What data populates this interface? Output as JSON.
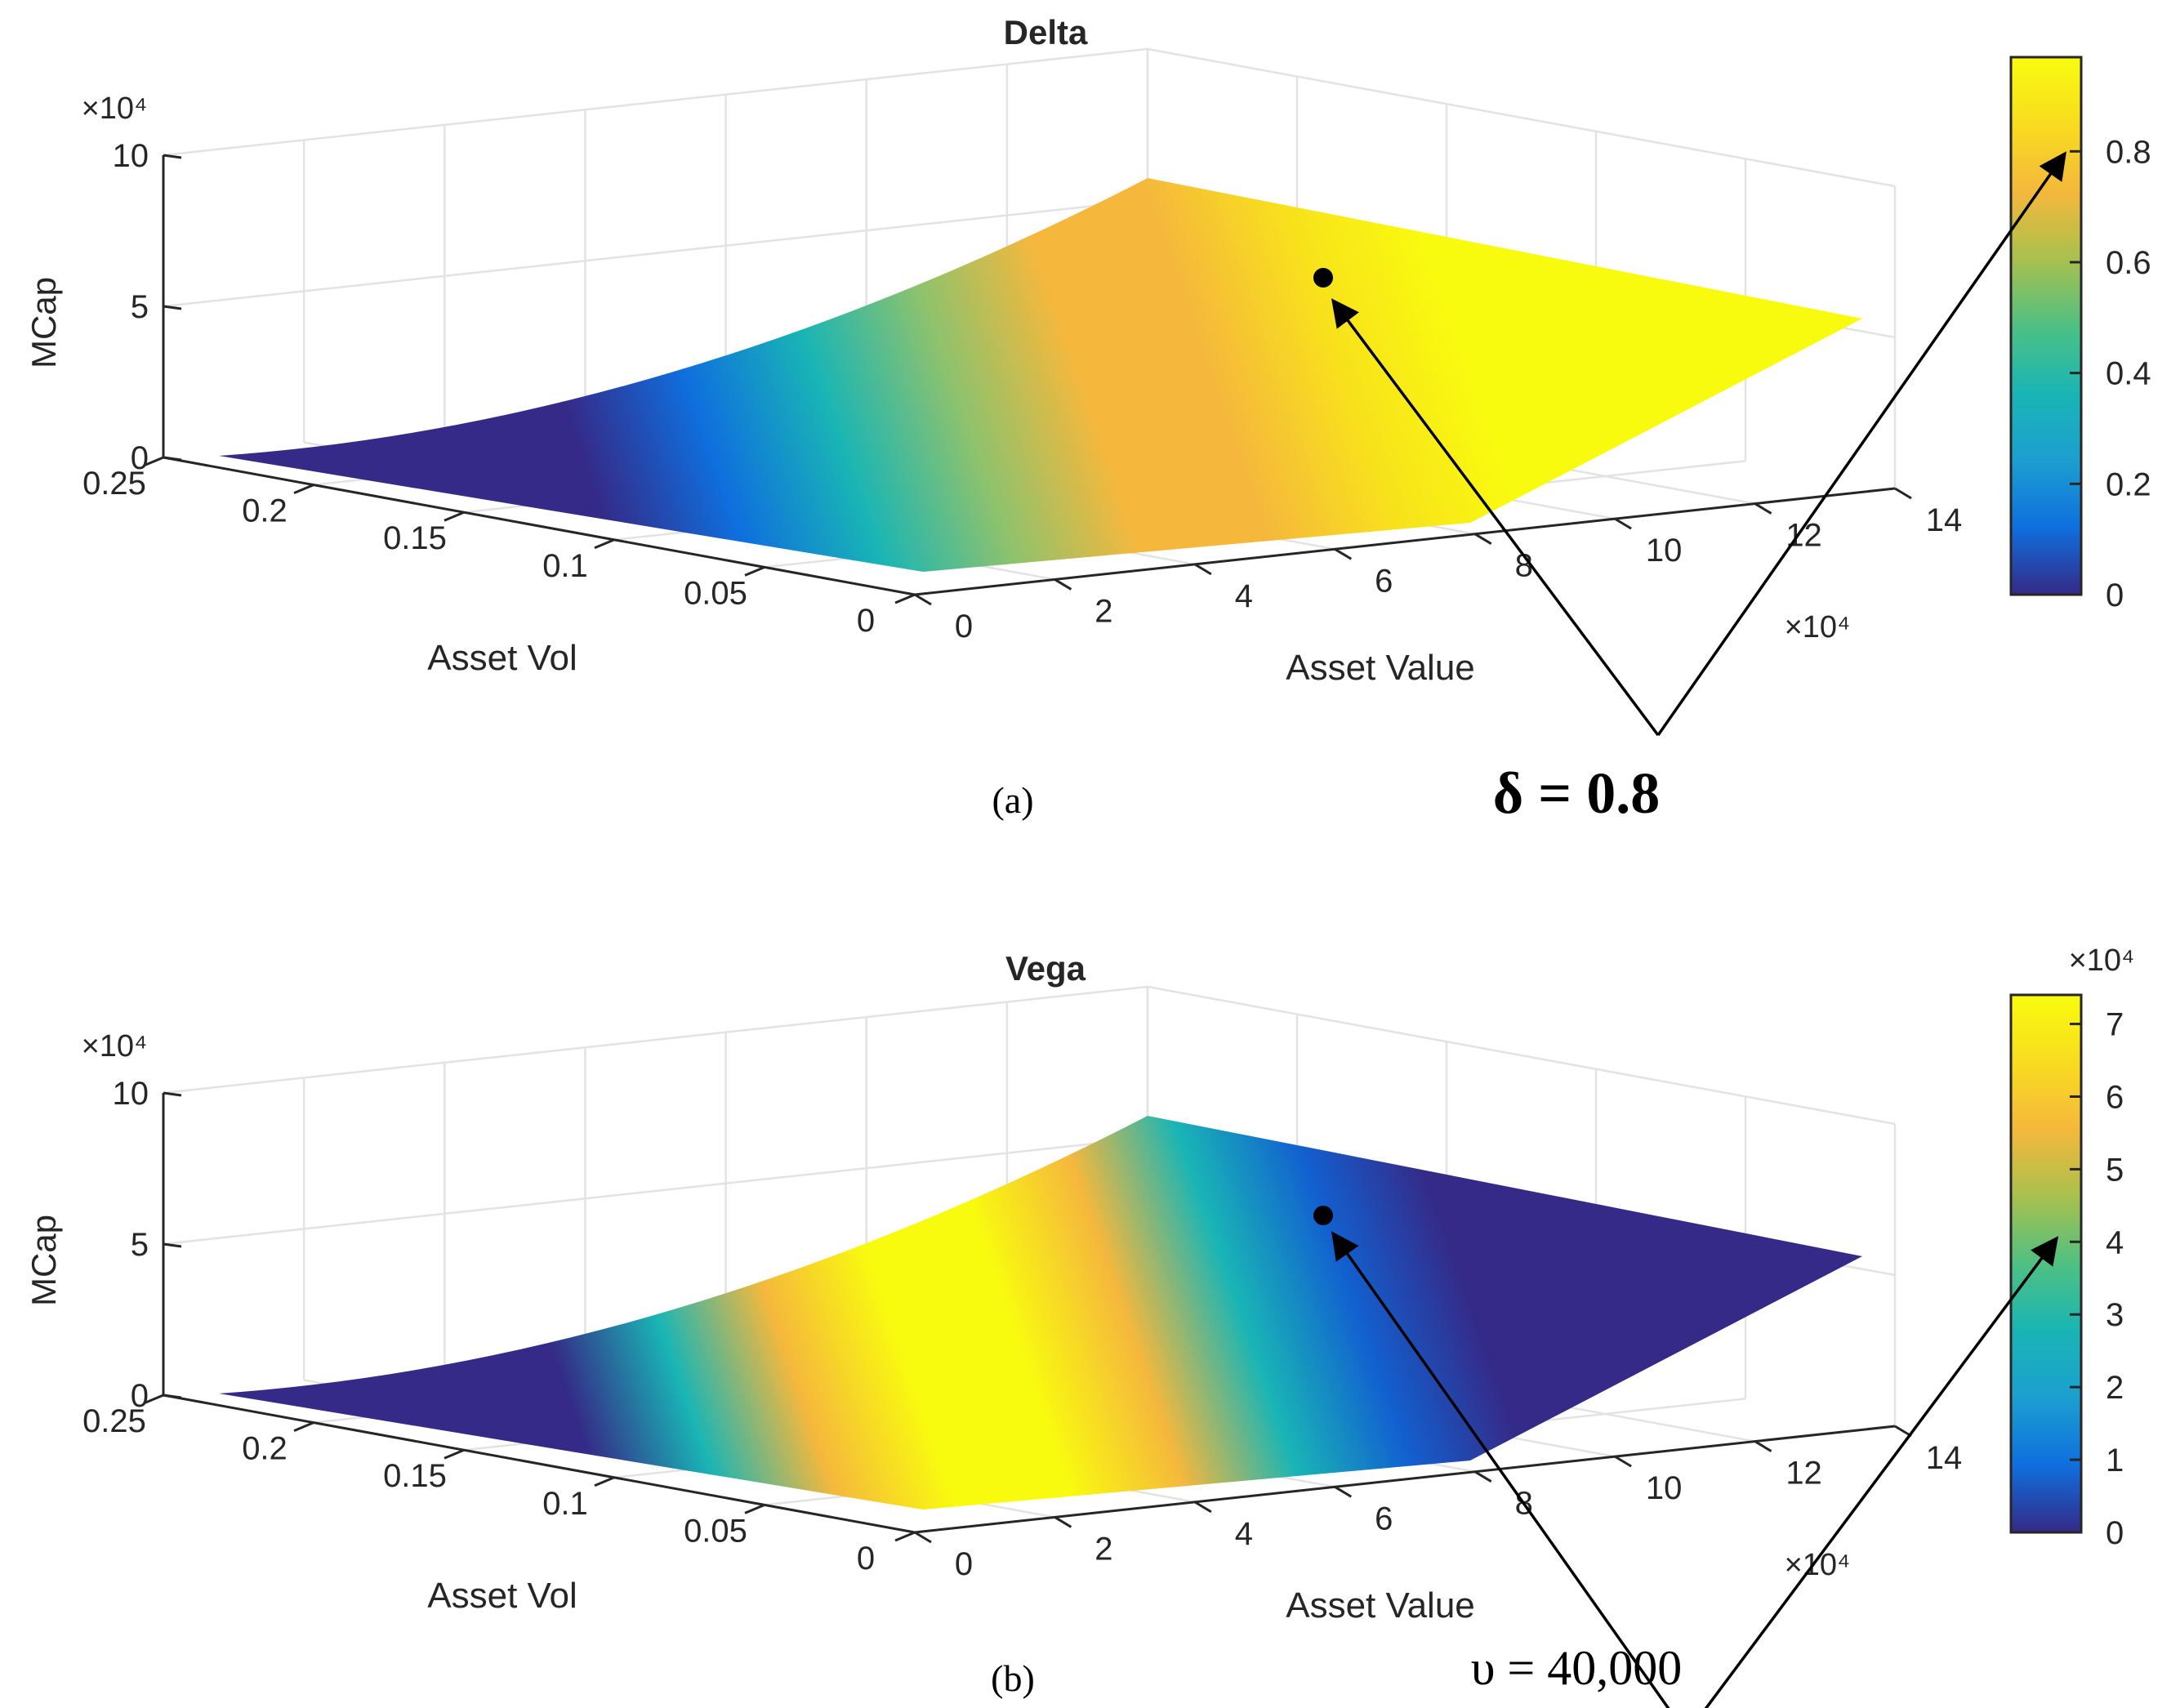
{
  "chart_data": [
    {
      "type": "surface",
      "panel_label": "(a)",
      "title": "Delta",
      "xlabel": "Asset Value",
      "ylabel": "Asset Vol",
      "zlabel": "MCap",
      "x_ticks": [
        "0",
        "2",
        "4",
        "6",
        "8",
        "10",
        "12",
        "14"
      ],
      "x_exponent": "×10⁴",
      "y_ticks": [
        "0",
        "0.05",
        "0.1",
        "0.15",
        "0.2",
        "0.25"
      ],
      "z_ticks": [
        "0",
        "5",
        "10"
      ],
      "z_exponent": "×10⁴",
      "xlim": [
        0,
        14
      ],
      "ylim": [
        0,
        0.25
      ],
      "zlim": [
        0,
        10
      ],
      "colorbar": {
        "ticks": [
          "0",
          "0.2",
          "0.4",
          "0.6",
          "0.8"
        ],
        "exponent": "",
        "range": [
          0,
          0.97
        ]
      },
      "grid": true,
      "highlight_point": {
        "x": 7.6,
        "y": 0.17,
        "z": 5.8
      },
      "annotation": "δ = 0.8",
      "color_gradient": [
        "#352a87",
        "#352a87",
        "#0f6fde",
        "#19b5b5",
        "#8dc26e",
        "#f5b83c",
        "#f5b83c",
        "#f8e11c",
        "#f9fb0e"
      ]
    },
    {
      "type": "surface",
      "panel_label": "(b)",
      "title": "Vega",
      "xlabel": "Asset Value",
      "ylabel": "Asset Vol",
      "zlabel": "MCap",
      "x_ticks": [
        "0",
        "2",
        "4",
        "6",
        "8",
        "10",
        "12",
        "14"
      ],
      "x_exponent": "×10⁴",
      "y_ticks": [
        "0",
        "0.05",
        "0.1",
        "0.15",
        "0.2",
        "0.25"
      ],
      "z_ticks": [
        "0",
        "5",
        "10"
      ],
      "z_exponent": "×10⁴",
      "xlim": [
        0,
        14
      ],
      "ylim": [
        0,
        0.25
      ],
      "zlim": [
        0,
        10
      ],
      "colorbar": {
        "ticks": [
          "0",
          "1",
          "2",
          "3",
          "4",
          "5",
          "6",
          "7"
        ],
        "exponent": "×10⁴",
        "range": [
          0,
          7.4
        ]
      },
      "grid": true,
      "highlight_point": {
        "x": 7.6,
        "y": 0.17,
        "z": 5.8
      },
      "annotation": "υ = 40,000",
      "color_gradient": [
        "#352a87",
        "#352a87",
        "#19b5b5",
        "#f5b83c",
        "#f9fb0e",
        "#f9fb0e",
        "#f5b83c",
        "#19b5b5",
        "#1260d0",
        "#352a87"
      ]
    }
  ],
  "colormap": [
    "#352a87",
    "#0f6fde",
    "#1c9fd0",
    "#19b5b5",
    "#4fc082",
    "#a9c04e",
    "#f5b83c",
    "#f8dc1f",
    "#f9fb0e"
  ]
}
